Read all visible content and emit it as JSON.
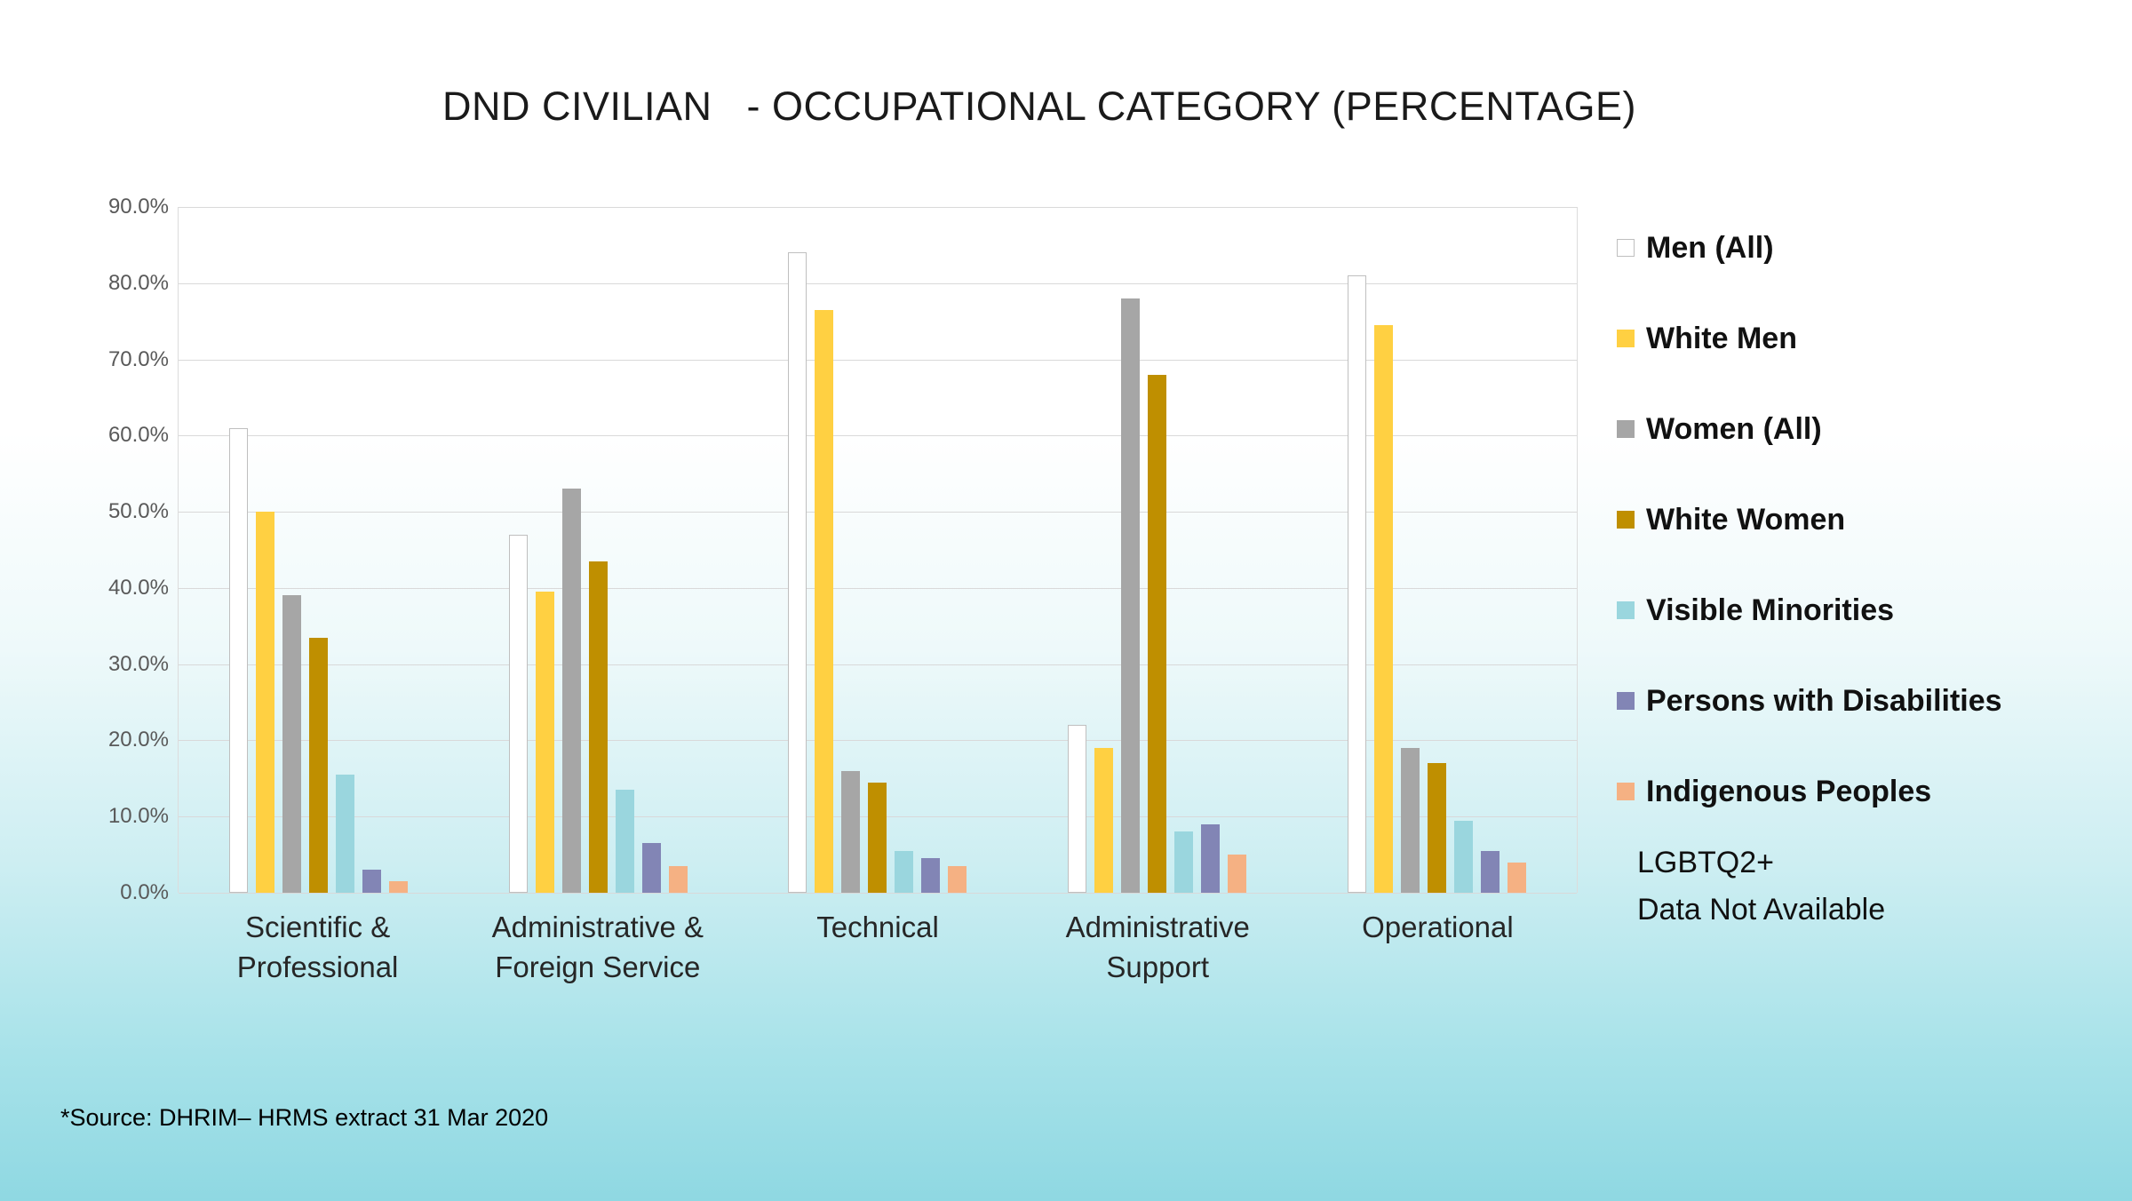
{
  "chart_data": {
    "type": "bar",
    "title": "DND CIVILIAN   - OCCUPATIONAL CATEGORY (PERCENTAGE)",
    "categories": [
      "Scientific & Professional",
      "Administrative & Foreign Service",
      "Technical",
      "Administrative Support",
      "Operational"
    ],
    "series": [
      {
        "name": "Men (All)",
        "color": "#FFFFFF",
        "border": "#BFBFBF",
        "values": [
          61.0,
          47.0,
          84.0,
          22.0,
          81.0
        ]
      },
      {
        "name": "White Men",
        "color": "#FFD042",
        "border": null,
        "values": [
          50.0,
          39.5,
          76.5,
          19.0,
          74.5
        ]
      },
      {
        "name": "Women (All)",
        "color": "#A6A6A6",
        "border": null,
        "values": [
          39.0,
          53.0,
          16.0,
          78.0,
          19.0
        ]
      },
      {
        "name": "White Women",
        "color": "#BF8F00",
        "border": null,
        "values": [
          33.5,
          43.5,
          14.5,
          68.0,
          17.0
        ]
      },
      {
        "name": "Visible Minorities",
        "color": "#9AD6DE",
        "border": null,
        "values": [
          15.5,
          13.5,
          5.5,
          8.0,
          9.5
        ]
      },
      {
        "name": "Persons with Disabilities",
        "color": "#8285B5",
        "border": null,
        "values": [
          3.0,
          6.5,
          4.5,
          9.0,
          5.5
        ]
      },
      {
        "name": "Indigenous Peoples",
        "color": "#F5B183",
        "border": null,
        "values": [
          1.5,
          3.5,
          3.5,
          5.0,
          4.0
        ]
      }
    ],
    "ylim": [
      0,
      90
    ],
    "ytick_step": 10,
    "ytick_labels": [
      "0.0%",
      "10.0%",
      "20.0%",
      "30.0%",
      "40.0%",
      "50.0%",
      "60.0%",
      "70.0%",
      "80.0%",
      "90.0%"
    ],
    "grid": true,
    "legend_position": "right"
  },
  "notes": {
    "lgbtq_line1": "LGBTQ2+",
    "lgbtq_line2": "Data Not Available"
  },
  "source": "*Source: DHRIM– HRMS extract 31 Mar 2020"
}
